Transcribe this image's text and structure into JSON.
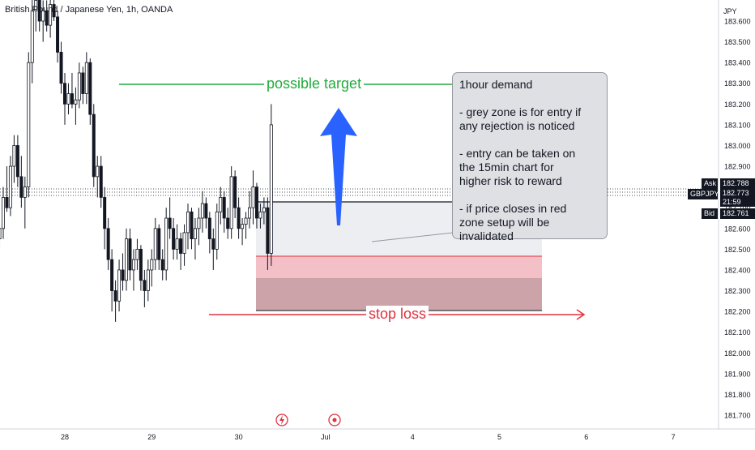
{
  "header": {
    "symbol_title": "British Pound / Japanese Yen, 1h, OANDA",
    "currency": "JPY"
  },
  "annotations": {
    "target_label": "possible target",
    "stop_label": "stop loss",
    "note_lines": [
      "1hour demand",
      "",
      "- grey zone is for entry if",
      "any rejection is noticed",
      "",
      "- entry can be taken on",
      "the 15min chart for",
      "higher risk to reward",
      "",
      "- if price closes in red",
      "zone setup will be",
      "invalidated"
    ]
  },
  "price_tags": {
    "ask_label": "Ask",
    "ask_value": "182.788",
    "symbol_label": "GBPJPY",
    "mid_value": "182.773",
    "countdown": "21:59",
    "bid_label": "Bid",
    "bid_value": "182.761"
  },
  "colors": {
    "up": "#131722",
    "down": "#131722",
    "target": "#22ab3d",
    "stop": "#e0313e",
    "arrow": "#2962ff",
    "entry_zone": "#eceef2",
    "invalid_zone_light": "#f2c0c6",
    "invalid_zone_dark": "#cca3a8",
    "ask_tag": "#131722",
    "bid_tag": "#131722"
  },
  "chart_data": {
    "type": "candlestick",
    "y_axis": {
      "side": "right",
      "ylim": [
        181.65,
        183.75
      ],
      "ticks": [
        "183.600",
        "183.500",
        "183.400",
        "183.300",
        "183.200",
        "183.100",
        "183.000",
        "182.900",
        "182.800",
        "182.700",
        "182.600",
        "182.500",
        "182.400",
        "182.300",
        "182.200",
        "182.100",
        "182.000",
        "181.900",
        "181.800",
        "181.700"
      ]
    },
    "x_axis": {
      "ticks": [
        "28",
        "29",
        "30",
        "Jul",
        "4",
        "5",
        "6",
        "7"
      ],
      "tick_positions": [
        0,
        24,
        48,
        72,
        96,
        120,
        144,
        168
      ]
    },
    "xlim": [
      -18,
      173
    ],
    "candles": [
      [
        -18,
        182.55,
        182.62,
        182.5,
        182.6
      ],
      [
        -17,
        182.6,
        182.8,
        182.55,
        182.75
      ],
      [
        -16,
        182.75,
        182.9,
        182.68,
        182.7
      ],
      [
        -15,
        182.7,
        182.95,
        182.66,
        182.9
      ],
      [
        -14,
        182.9,
        183.05,
        182.82,
        183.0
      ],
      [
        -13,
        183.0,
        183.05,
        182.8,
        182.85
      ],
      [
        -12,
        182.85,
        182.95,
        182.7,
        182.75
      ],
      [
        -11,
        182.75,
        182.85,
        182.6,
        182.8
      ],
      [
        -10,
        182.8,
        183.45,
        182.75,
        183.4
      ],
      [
        -9,
        183.4,
        183.72,
        183.3,
        183.65
      ],
      [
        -8,
        183.65,
        183.75,
        183.55,
        183.7
      ],
      [
        -7,
        183.7,
        183.72,
        183.55,
        183.6
      ],
      [
        -6,
        183.6,
        183.7,
        183.5,
        183.65
      ],
      [
        -5,
        183.65,
        183.7,
        183.55,
        183.58
      ],
      [
        -4,
        183.58,
        183.72,
        183.52,
        183.68
      ],
      [
        -3,
        183.68,
        183.75,
        183.6,
        183.62
      ],
      [
        -2,
        183.62,
        183.65,
        183.4,
        183.45
      ],
      [
        -1,
        183.45,
        183.5,
        183.25,
        183.3
      ],
      [
        0,
        183.3,
        183.35,
        183.1,
        183.2
      ],
      [
        1,
        183.2,
        183.3,
        183.15,
        183.25
      ],
      [
        2,
        183.25,
        183.35,
        183.18,
        183.2
      ],
      [
        3,
        183.2,
        183.28,
        183.1,
        183.22
      ],
      [
        4,
        183.22,
        183.4,
        183.18,
        183.35
      ],
      [
        5,
        183.35,
        183.38,
        183.2,
        183.25
      ],
      [
        6,
        183.25,
        183.45,
        183.2,
        183.4
      ],
      [
        7,
        183.4,
        183.42,
        183.1,
        183.15
      ],
      [
        8,
        183.15,
        183.2,
        182.8,
        182.85
      ],
      [
        9,
        182.85,
        182.95,
        182.75,
        182.9
      ],
      [
        10,
        182.9,
        182.95,
        182.7,
        182.75
      ],
      [
        11,
        182.75,
        182.8,
        182.5,
        182.6
      ],
      [
        12,
        182.6,
        182.65,
        182.4,
        182.45
      ],
      [
        13,
        182.45,
        182.5,
        182.2,
        182.3
      ],
      [
        14,
        182.3,
        182.35,
        182.15,
        182.25
      ],
      [
        15,
        182.25,
        182.45,
        182.2,
        182.4
      ],
      [
        16,
        182.4,
        182.48,
        182.3,
        182.35
      ],
      [
        17,
        182.35,
        182.6,
        182.3,
        182.55
      ],
      [
        18,
        182.55,
        182.6,
        182.35,
        182.4
      ],
      [
        19,
        182.4,
        182.5,
        182.3,
        182.45
      ],
      [
        20,
        182.45,
        182.55,
        182.4,
        182.5
      ],
      [
        21,
        182.5,
        182.52,
        182.3,
        182.35
      ],
      [
        22,
        182.35,
        182.4,
        182.22,
        182.3
      ],
      [
        23,
        182.3,
        182.45,
        182.25,
        182.4
      ],
      [
        24,
        182.4,
        182.5,
        182.32,
        182.45
      ],
      [
        25,
        182.45,
        182.65,
        182.4,
        182.6
      ],
      [
        26,
        182.6,
        182.62,
        182.4,
        182.45
      ],
      [
        27,
        182.45,
        182.5,
        182.35,
        182.4
      ],
      [
        28,
        182.4,
        182.7,
        182.35,
        182.65
      ],
      [
        29,
        182.65,
        182.75,
        182.55,
        182.6
      ],
      [
        30,
        182.6,
        182.65,
        182.45,
        182.5
      ],
      [
        31,
        182.5,
        182.62,
        182.45,
        182.55
      ],
      [
        32,
        182.55,
        182.58,
        182.4,
        182.48
      ],
      [
        33,
        182.48,
        182.62,
        182.42,
        182.58
      ],
      [
        34,
        182.58,
        182.72,
        182.5,
        182.68
      ],
      [
        35,
        182.68,
        182.7,
        182.5,
        182.55
      ],
      [
        36,
        182.55,
        182.65,
        182.45,
        182.6
      ],
      [
        37,
        182.6,
        182.7,
        182.52,
        182.65
      ],
      [
        38,
        182.65,
        182.78,
        182.58,
        182.72
      ],
      [
        39,
        182.72,
        182.75,
        182.6,
        182.65
      ],
      [
        40,
        182.65,
        182.68,
        182.48,
        182.55
      ],
      [
        41,
        182.55,
        182.6,
        182.4,
        182.5
      ],
      [
        42,
        182.5,
        182.72,
        182.45,
        182.68
      ],
      [
        43,
        182.68,
        182.8,
        182.62,
        182.75
      ],
      [
        44,
        182.75,
        182.78,
        182.58,
        182.65
      ],
      [
        45,
        182.65,
        182.7,
        182.55,
        182.6
      ],
      [
        46,
        182.6,
        182.9,
        182.55,
        182.85
      ],
      [
        47,
        182.85,
        182.88,
        182.65,
        182.7
      ],
      [
        48,
        182.7,
        182.75,
        182.55,
        182.6
      ],
      [
        49,
        182.6,
        182.65,
        182.52,
        182.62
      ],
      [
        50,
        182.62,
        182.68,
        182.55,
        182.65
      ],
      [
        51,
        182.65,
        182.78,
        182.6,
        182.7
      ],
      [
        52,
        182.7,
        182.88,
        182.62,
        182.8
      ],
      [
        53,
        182.8,
        182.82,
        182.6,
        182.65
      ],
      [
        54,
        182.65,
        182.72,
        182.6,
        182.68
      ],
      [
        55,
        182.68,
        182.75,
        182.62,
        182.7
      ],
      [
        56,
        182.7,
        182.75,
        182.4,
        182.48
      ],
      [
        57,
        182.48,
        183.2,
        182.42,
        183.1
      ]
    ],
    "title": ""
  }
}
